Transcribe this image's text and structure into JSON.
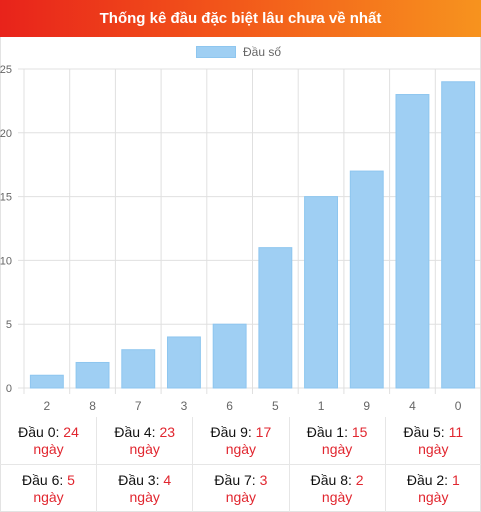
{
  "header": {
    "title": "Thống kê đầu đặc biệt lâu chưa về nhất"
  },
  "chart_data": {
    "type": "bar",
    "title": "Thống kê đầu đặc biệt lâu chưa về nhất",
    "categories": [
      "2",
      "8",
      "7",
      "3",
      "6",
      "5",
      "1",
      "9",
      "4",
      "0"
    ],
    "series": [
      {
        "name": "Đầu số",
        "values": [
          1,
          2,
          3,
          4,
          5,
          11,
          15,
          17,
          23,
          24
        ]
      }
    ],
    "ylim": [
      0,
      25
    ],
    "yticks": [
      "0",
      "5",
      "10",
      "15",
      "20",
      "25"
    ],
    "grid": true,
    "legend_position": "top-center",
    "bar_color": "#9fcff3"
  },
  "stats": {
    "unit": "ngày",
    "items": [
      {
        "label": "Đầu 0:",
        "value": "24"
      },
      {
        "label": "Đầu 4:",
        "value": "23"
      },
      {
        "label": "Đầu 9:",
        "value": "17"
      },
      {
        "label": "Đầu 1:",
        "value": "15"
      },
      {
        "label": "Đầu 5:",
        "value": "11"
      },
      {
        "label": "Đầu 6:",
        "value": "5"
      },
      {
        "label": "Đầu 3:",
        "value": "4"
      },
      {
        "label": "Đầu 7:",
        "value": "3"
      },
      {
        "label": "Đầu 8:",
        "value": "2"
      },
      {
        "label": "Đầu 2:",
        "value": "1"
      }
    ]
  }
}
